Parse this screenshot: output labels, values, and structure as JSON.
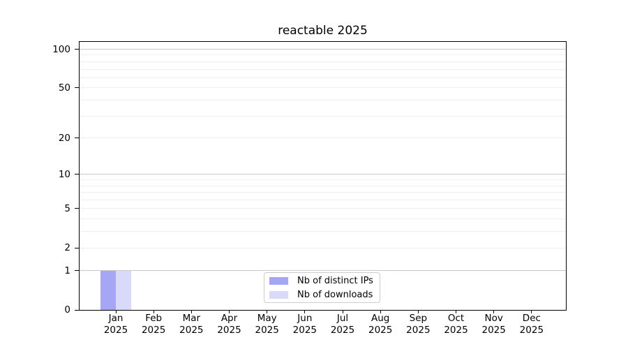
{
  "chart_data": {
    "type": "bar",
    "title": "reactable 2025",
    "categories": [
      "Jan",
      "Feb",
      "Mar",
      "Apr",
      "May",
      "Jun",
      "Jul",
      "Aug",
      "Sep",
      "Oct",
      "Nov",
      "Dec"
    ],
    "year": "2025",
    "series": [
      {
        "name": "Nb of distinct IPs",
        "color": "#a6a6f7",
        "values": [
          1,
          0,
          0,
          0,
          0,
          0,
          0,
          0,
          0,
          0,
          0,
          0
        ]
      },
      {
        "name": "Nb of downloads",
        "color": "#d9d9fa",
        "values": [
          1,
          0,
          0,
          0,
          0,
          0,
          0,
          0,
          0,
          0,
          0,
          0
        ]
      }
    ],
    "y_ticks": [
      0,
      1,
      2,
      5,
      10,
      20,
      50,
      100
    ],
    "y_major_gridlines": [
      1,
      10,
      100
    ],
    "y_minor_gridlines": [
      2,
      3,
      4,
      5,
      6,
      7,
      8,
      9,
      20,
      30,
      40,
      50,
      60,
      70,
      80,
      90
    ],
    "scale": "log1p",
    "ylim": [
      0,
      114
    ],
    "xlabel": "",
    "ylabel": "",
    "grid": "on",
    "legend_position": "lower center inside",
    "colors": {
      "major_grid": "#c9c9c9",
      "minor_grid": "#eeeeee",
      "axis": "#000000",
      "text": "#000000",
      "legend_border": "#cccccc",
      "background": "#ffffff"
    }
  }
}
